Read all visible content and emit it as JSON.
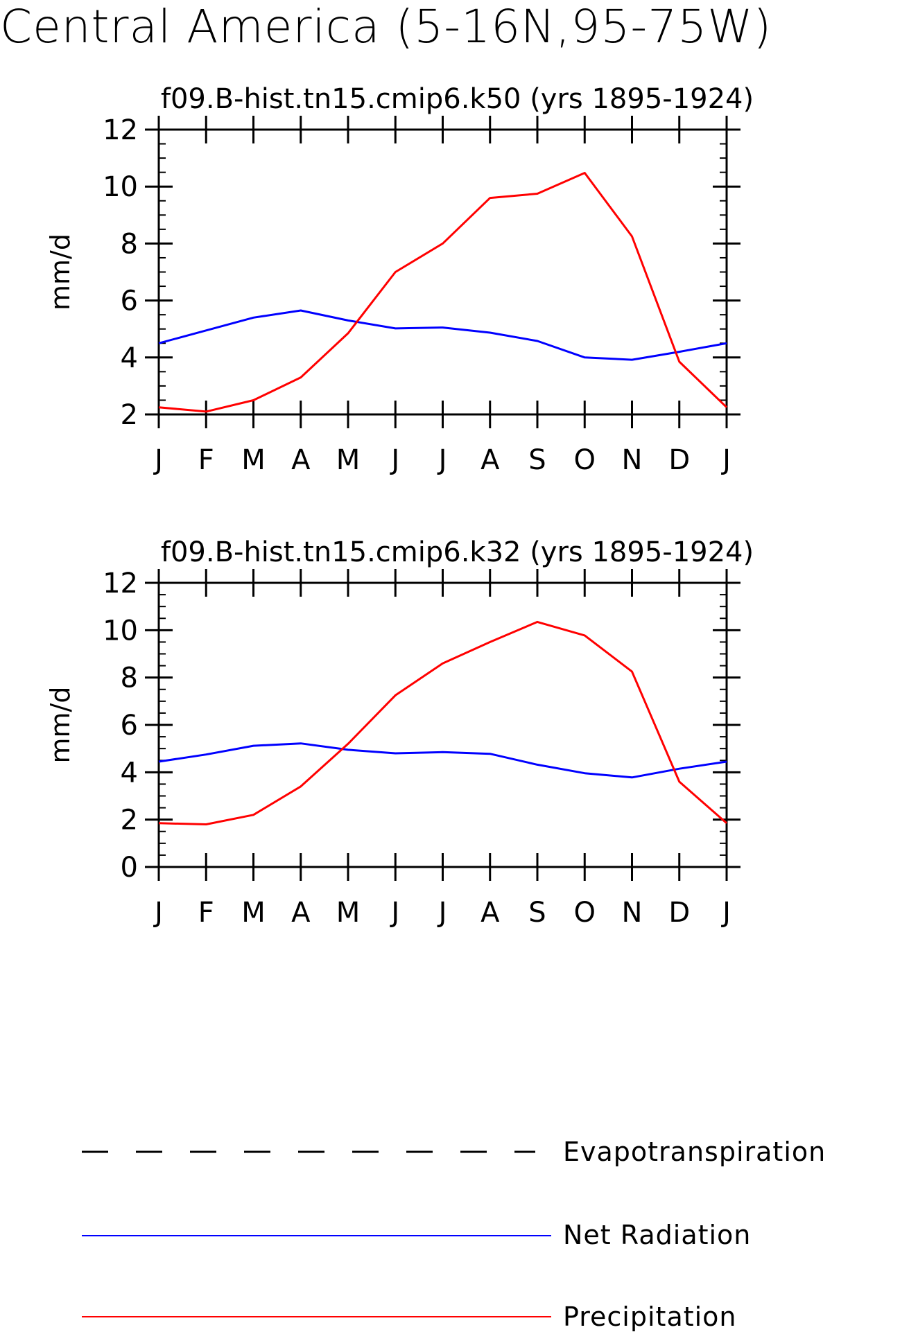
{
  "figure_title": "Central America (5-16N,95-75W)",
  "legend": {
    "items": [
      {
        "label": "Evapotranspiration",
        "style": "dashed",
        "color": "#000000"
      },
      {
        "label": "Net Radiation",
        "style": "solid",
        "color": "#0000ff"
      },
      {
        "label": "Precipitation",
        "style": "solid",
        "color": "#ff0000"
      }
    ]
  },
  "chart_data": [
    {
      "type": "line",
      "title": "f09.B-hist.tn15.cmip6.k50 (yrs 1895-1924)",
      "xlabel": "",
      "ylabel": "mm/d",
      "categories": [
        "J",
        "F",
        "M",
        "A",
        "M",
        "J",
        "J",
        "A",
        "S",
        "O",
        "N",
        "D",
        "J"
      ],
      "ylim": [
        2,
        12
      ],
      "yticks": [
        2,
        4,
        6,
        8,
        10,
        12
      ],
      "series": [
        {
          "name": "Net Radiation",
          "color": "#0000ff",
          "values": [
            4.5,
            4.95,
            5.4,
            5.65,
            5.3,
            5.02,
            5.05,
            4.87,
            4.58,
            4.0,
            3.92,
            4.2,
            4.5
          ]
        },
        {
          "name": "Precipitation",
          "color": "#ff0000",
          "values": [
            2.25,
            2.1,
            2.5,
            3.3,
            4.85,
            7.0,
            8.0,
            9.6,
            9.75,
            10.48,
            8.25,
            3.85,
            2.25
          ]
        }
      ]
    },
    {
      "type": "line",
      "title": "f09.B-hist.tn15.cmip6.k32 (yrs 1895-1924)",
      "xlabel": "",
      "ylabel": "mm/d",
      "categories": [
        "J",
        "F",
        "M",
        "A",
        "M",
        "J",
        "J",
        "A",
        "S",
        "O",
        "N",
        "D",
        "J"
      ],
      "ylim": [
        0,
        12
      ],
      "yticks": [
        0,
        2,
        4,
        6,
        8,
        10,
        12
      ],
      "series": [
        {
          "name": "Net Radiation",
          "color": "#0000ff",
          "values": [
            4.45,
            4.75,
            5.12,
            5.22,
            4.95,
            4.8,
            4.85,
            4.78,
            4.32,
            3.96,
            3.78,
            4.15,
            4.45
          ]
        },
        {
          "name": "Precipitation",
          "color": "#ff0000",
          "values": [
            1.85,
            1.8,
            2.2,
            3.4,
            5.2,
            7.25,
            8.6,
            9.5,
            10.35,
            9.78,
            8.25,
            3.6,
            1.85
          ]
        }
      ]
    }
  ]
}
